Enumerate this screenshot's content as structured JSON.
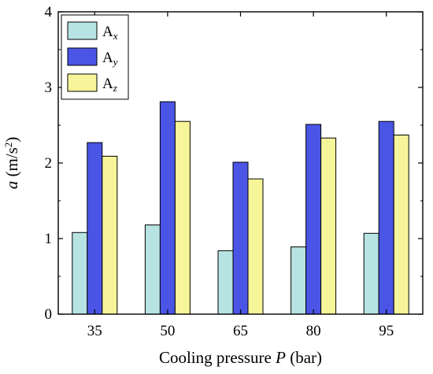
{
  "chart_data": {
    "type": "bar",
    "categories": [
      "35",
      "50",
      "65",
      "80",
      "95"
    ],
    "series": [
      {
        "name": "Ax",
        "label_main": "A",
        "label_sub": "x",
        "color": "#b7e3e3",
        "values": [
          1.08,
          1.18,
          0.84,
          0.89,
          1.07
        ]
      },
      {
        "name": "Ay",
        "label_main": "A",
        "label_sub": "y",
        "color": "#4a55e6",
        "values": [
          2.27,
          2.81,
          2.01,
          2.51,
          2.55
        ]
      },
      {
        "name": "Az",
        "label_main": "A",
        "label_sub": "z",
        "color": "#f7f59a",
        "values": [
          2.09,
          2.55,
          1.79,
          2.33,
          2.37
        ]
      }
    ],
    "xlabel_main": "Cooling pressure ",
    "xlabel_var": "P",
    "xlabel_unit": " (bar)",
    "ylabel_var": "a",
    "ylabel_unit": " (m/s",
    "ylabel_exp": "2",
    "ylabel_close": ")",
    "ylim": [
      0,
      4
    ],
    "yticks": [
      "0",
      "1",
      "2",
      "3",
      "4"
    ],
    "grid": false,
    "legend_position": "top-left"
  }
}
